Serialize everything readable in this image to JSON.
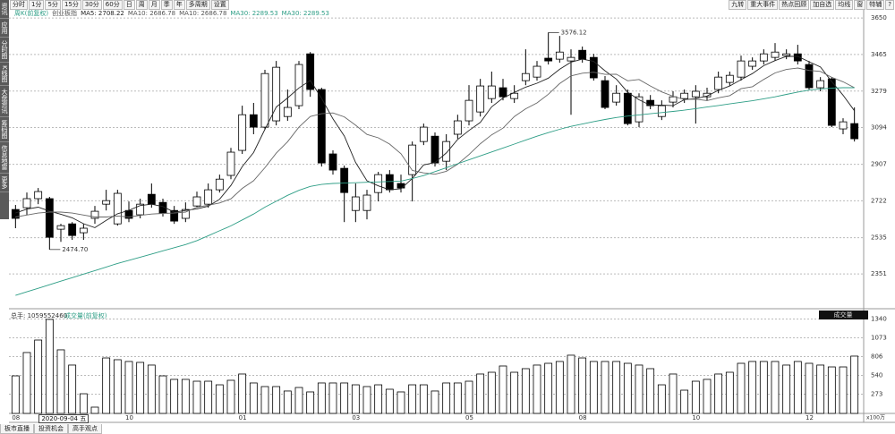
{
  "ui": {
    "toolbar_left": [
      "分时",
      "1分",
      "5分",
      "15分",
      "30分",
      "60分",
      "日",
      "周",
      "月",
      "季",
      "年",
      "多周期",
      "设置"
    ],
    "toolbar_right": [
      "九转",
      "重大事件",
      "热点回顾",
      "加自选",
      "均线",
      "窗",
      "特辅",
      "?"
    ],
    "side_tabs": [
      "资讯",
      "应用",
      "分时图",
      "K线图",
      "大盘资讯",
      "筹码图",
      "信息地雷",
      "更多"
    ],
    "bottom_tabs": [
      "板市直播",
      "投资机会",
      "高手观点"
    ],
    "cursor_label": "2020-09-04 五"
  },
  "chart_data": [
    {
      "type": "candlestick",
      "period": "周K(前复权)",
      "name": "创业板指",
      "legend": [
        {
          "text": "MA5: 2708.22",
          "color": "#222222"
        },
        {
          "text": "MA10: 2686.78",
          "color": "#555555"
        },
        {
          "text": "MA10: 2686.78",
          "color": "#555555"
        },
        {
          "text": "MA30: 2289.53",
          "color": "#2e9e86"
        },
        {
          "text": "MA30: 2289.53",
          "color": "#2e9e86"
        }
      ],
      "open": [
        2678,
        2687,
        2733,
        2733,
        2578,
        2605,
        2560,
        2633,
        2705,
        2605,
        2673,
        2651,
        2755,
        2714,
        2673,
        2633,
        2696,
        2705,
        2778,
        2851,
        2978,
        3159,
        3096,
        3128,
        3150,
        3205,
        3468,
        3287,
        2960,
        2887,
        2673,
        2673,
        2764,
        2855,
        2810,
        2855,
        3023,
        3050,
        2923,
        3060,
        3128,
        3173,
        3241,
        3296,
        3241,
        3332,
        3350,
        3446,
        3441,
        3432,
        3486,
        3450,
        3332,
        3223,
        3268,
        3123,
        3232,
        3150,
        3223,
        3241,
        3250,
        3250,
        3287,
        3323,
        3350,
        3405,
        3432,
        3450,
        3459,
        3468,
        3414,
        3296,
        3341,
        3087,
        3114
      ],
      "high": [
        2701,
        2764,
        2787,
        2742,
        2605,
        2614,
        2605,
        2696,
        2778,
        2778,
        2719,
        2733,
        2810,
        2733,
        2696,
        2714,
        2769,
        2810,
        2855,
        2991,
        3205,
        3219,
        3387,
        3432,
        3287,
        3432,
        3477,
        3296,
        2978,
        2901,
        2810,
        2778,
        2869,
        2878,
        2855,
        3023,
        3114,
        3069,
        3060,
        3159,
        3309,
        3341,
        3378,
        3341,
        3309,
        3491,
        3432,
        3576.12,
        3559,
        3491,
        3505,
        3468,
        3355,
        3309,
        3287,
        3268,
        3259,
        3232,
        3278,
        3287,
        3309,
        3296,
        3378,
        3378,
        3459,
        3450,
        3491,
        3523,
        3491,
        3514,
        3432,
        3350,
        3350,
        3141,
        3196
      ],
      "low": [
        2583,
        2651,
        2705,
        2474.7,
        2514,
        2524,
        2524,
        2605,
        2673,
        2596,
        2614,
        2633,
        2687,
        2642,
        2605,
        2614,
        2687,
        2687,
        2764,
        2832,
        2960,
        3060,
        3082,
        3105,
        3128,
        3187,
        3250,
        2896,
        2855,
        2614,
        2614,
        2628,
        2719,
        2764,
        2764,
        2719,
        3005,
        2896,
        2878,
        3037,
        3105,
        3150,
        3219,
        3232,
        3219,
        3309,
        3332,
        3414,
        3423,
        3159,
        3423,
        3332,
        3187,
        3205,
        3105,
        3096,
        3187,
        3132,
        3196,
        3219,
        3114,
        3232,
        3268,
        3305,
        3332,
        3387,
        3414,
        3432,
        3441,
        3414,
        3287,
        3278,
        3096,
        3060,
        3023
      ],
      "close": [
        2633,
        2733,
        2769,
        2537,
        2596,
        2546,
        2583,
        2669,
        2723,
        2760,
        2633,
        2705,
        2705,
        2660,
        2619,
        2678,
        2742,
        2778,
        2832,
        2969,
        3159,
        3096,
        3368,
        3400,
        3196,
        3414,
        3287,
        2914,
        2878,
        2764,
        2742,
        2751,
        2855,
        2778,
        2787,
        3005,
        3096,
        2914,
        3023,
        3128,
        3232,
        3305,
        3305,
        3250,
        3268,
        3368,
        3405,
        3432,
        3477,
        3450,
        3441,
        3346,
        3196,
        3268,
        3114,
        3250,
        3205,
        3205,
        3250,
        3268,
        3278,
        3268,
        3350,
        3359,
        3432,
        3432,
        3468,
        3477,
        3468,
        3432,
        3296,
        3332,
        3105,
        3123,
        3037
      ],
      "up_color": "#ffffff",
      "down_color": "#000000",
      "series": [
        {
          "color": "#222222",
          "values": [
            2660,
            2680,
            2690,
            2670,
            2654,
            2636,
            2606,
            2586,
            2623,
            2656,
            2674,
            2698,
            2705,
            2693,
            2664,
            2673,
            2681,
            2695,
            2730,
            2800,
            2896,
            2967,
            3085,
            3198,
            3244,
            3295,
            3333,
            3242,
            3138,
            3051,
            2917,
            2824,
            2798,
            2778,
            2783,
            2835,
            2904,
            2916,
            2965,
            3033,
            3079,
            3120,
            3199,
            3244,
            3272,
            3299,
            3319,
            3345,
            3390,
            3426,
            3441,
            3430,
            3382,
            3340,
            3273,
            3235,
            3207,
            3208,
            3205,
            3236,
            3241,
            3254,
            3283,
            3305,
            3337,
            3368,
            3408,
            3434,
            3455,
            3455,
            3428,
            3401,
            3327,
            3258,
            3179
          ]
        },
        {
          "color": "#666666",
          "values": [
            2640,
            2650,
            2660,
            2665,
            2665,
            2660,
            2650,
            2640,
            2640,
            2645,
            2640,
            2648,
            2655,
            2658,
            2660,
            2665,
            2690,
            2700,
            2711,
            2732,
            2785,
            2824,
            2890,
            2964,
            3022,
            3096,
            3150,
            3164,
            3168,
            3148,
            3106,
            3059,
            3042,
            3010,
            2961,
            2876,
            2864,
            2857,
            2872,
            2908,
            2957,
            3012,
            3057,
            3091,
            3150,
            3189,
            3219,
            3263,
            3317,
            3356,
            3370,
            3375,
            3364,
            3365,
            3331,
            3338,
            3305,
            3275,
            3253,
            3236,
            3238,
            3231,
            3245,
            3256,
            3291,
            3301,
            3338,
            3371,
            3389,
            3396,
            3384,
            3379,
            3349,
            3326,
            3296
          ]
        },
        {
          "color": "#2e9e86",
          "values": [
            2242,
            2260,
            2278,
            2296,
            2314,
            2332,
            2350,
            2368,
            2386,
            2404,
            2420,
            2436,
            2452,
            2468,
            2484,
            2500,
            2520,
            2545,
            2570,
            2595,
            2625,
            2655,
            2690,
            2720,
            2750,
            2775,
            2795,
            2805,
            2810,
            2812,
            2814,
            2816,
            2818,
            2820,
            2822,
            2835,
            2850,
            2870,
            2890,
            2910,
            2930,
            2950,
            2970,
            2990,
            3010,
            3030,
            3050,
            3068,
            3085,
            3100,
            3112,
            3124,
            3135,
            3145,
            3152,
            3158,
            3164,
            3170,
            3176,
            3182,
            3190,
            3198,
            3206,
            3214,
            3222,
            3230,
            3240,
            3250,
            3262,
            3274,
            3284,
            3290,
            3294,
            3296,
            3296
          ]
        }
      ],
      "annotations": [
        {
          "x": 47,
          "y": 3576.12,
          "label": "3576.12"
        },
        {
          "x": 3,
          "y": 2474.7,
          "label": "2474.70"
        }
      ],
      "ylim": [
        2197,
        3705
      ],
      "yticks": [
        3650,
        3465,
        3279,
        3094,
        2907,
        2722,
        2535,
        2351
      ],
      "grid": true
    },
    {
      "type": "bar",
      "title": "总手: 1059552460",
      "subtitle": "成交量(前复权)",
      "label": "成交量",
      "unit": "x100万",
      "categories": [
        "08",
        null,
        null,
        null,
        null,
        null,
        null,
        null,
        null,
        null,
        "10",
        null,
        null,
        null,
        null,
        null,
        null,
        null,
        null,
        null,
        "01",
        null,
        null,
        null,
        null,
        null,
        null,
        null,
        null,
        null,
        "03",
        null,
        null,
        null,
        null,
        null,
        null,
        null,
        null,
        null,
        "05",
        null,
        null,
        null,
        null,
        null,
        null,
        null,
        null,
        null,
        "08",
        null,
        null,
        null,
        null,
        null,
        null,
        null,
        null,
        null,
        "10",
        null,
        null,
        null,
        null,
        null,
        null,
        null,
        null,
        null,
        "12",
        null,
        null,
        null,
        null
      ],
      "values": [
        533,
        864,
        1041,
        1334,
        902,
        686,
        279,
        89,
        787,
        762,
        737,
        724,
        686,
        533,
        483,
        483,
        457,
        457,
        406,
        470,
        559,
        432,
        381,
        381,
        318,
        368,
        305,
        432,
        432,
        432,
        406,
        381,
        406,
        343,
        305,
        406,
        406,
        318,
        432,
        432,
        457,
        559,
        584,
        673,
        584,
        635,
        686,
        711,
        737,
        826,
        787,
        737,
        737,
        737,
        711,
        686,
        635,
        406,
        559,
        330,
        457,
        483,
        559,
        584,
        711,
        737,
        737,
        737,
        686,
        737,
        711,
        686,
        660,
        660,
        813
      ],
      "color": "#ffffff",
      "ylim": [
        0,
        1422
      ],
      "yticks": [
        1340,
        1073,
        806,
        540,
        273
      ],
      "grid": true
    }
  ]
}
